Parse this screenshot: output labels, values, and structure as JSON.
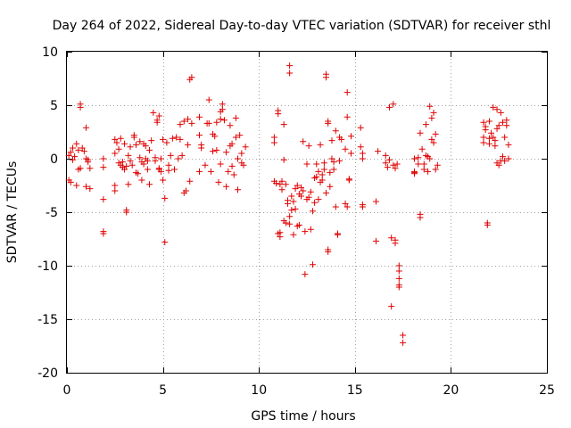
{
  "chart_data": {
    "type": "scatter",
    "title": "Day 264 of 2022, Sidereal Day-to-day VTEC variation (SDTVAR) for receiver sthl",
    "xlabel": "GPS time / hours",
    "ylabel": "SDTVAR / TECUs",
    "xlim": [
      0,
      25
    ],
    "ylim": [
      -20,
      10
    ],
    "xticks": [
      0,
      5,
      10,
      15,
      20,
      25
    ],
    "yticks": [
      -20,
      -15,
      -10,
      -5,
      0,
      5,
      10
    ],
    "grid": true,
    "marker": "+",
    "color": "#e00000",
    "series": [
      {
        "name": "sthl",
        "points": [
          [
            0.1,
            0.3
          ],
          [
            0.1,
            -2.0
          ],
          [
            0.2,
            0.6
          ],
          [
            0.2,
            -2.2
          ],
          [
            0.3,
            1.0
          ],
          [
            0.3,
            -0.1
          ],
          [
            0.4,
            0.2
          ],
          [
            0.5,
            -2.5
          ],
          [
            0.5,
            1.4
          ],
          [
            0.6,
            -1.0
          ],
          [
            0.6,
            0.8
          ],
          [
            0.7,
            5.1
          ],
          [
            0.7,
            4.8
          ],
          [
            0.7,
            -0.9
          ],
          [
            0.8,
            1.0
          ],
          [
            0.9,
            0.7
          ],
          [
            1.0,
            -2.6
          ],
          [
            1.0,
            0.0
          ],
          [
            1.0,
            2.9
          ],
          [
            1.1,
            -0.3
          ],
          [
            1.1,
            -0.1
          ],
          [
            1.2,
            -2.8
          ],
          [
            1.2,
            -0.9
          ],
          [
            1.9,
            0.0
          ],
          [
            1.9,
            -0.8
          ],
          [
            1.9,
            -3.8
          ],
          [
            1.9,
            -6.8
          ],
          [
            1.9,
            -7.0
          ],
          [
            2.5,
            1.8
          ],
          [
            2.5,
            0.5
          ],
          [
            2.5,
            -2.5
          ],
          [
            2.5,
            -3.0
          ],
          [
            2.6,
            1.5
          ],
          [
            2.7,
            0.9
          ],
          [
            2.7,
            -0.4
          ],
          [
            2.8,
            -0.6
          ],
          [
            2.8,
            1.9
          ],
          [
            2.9,
            -0.8
          ],
          [
            2.9,
            -0.3
          ],
          [
            3.0,
            1.4
          ],
          [
            3.0,
            -1.0
          ],
          [
            3.1,
            -0.7
          ],
          [
            3.1,
            -4.8
          ],
          [
            3.1,
            -5.0
          ],
          [
            3.2,
            0.3
          ],
          [
            3.2,
            -2.4
          ],
          [
            3.3,
            1.1
          ],
          [
            3.3,
            -0.2
          ],
          [
            3.4,
            -0.6
          ],
          [
            3.5,
            2.2
          ],
          [
            3.5,
            2.0
          ],
          [
            3.6,
            -1.3
          ],
          [
            3.6,
            1.3
          ],
          [
            3.7,
            -1.4
          ],
          [
            3.8,
            0.1
          ],
          [
            3.8,
            1.6
          ],
          [
            3.9,
            -0.3
          ],
          [
            3.9,
            -2.0
          ],
          [
            4.0,
            1.4
          ],
          [
            4.0,
            -0.5
          ],
          [
            4.1,
            1.2
          ],
          [
            4.1,
            0.0
          ],
          [
            4.2,
            -1.0
          ],
          [
            4.2,
            -0.2
          ],
          [
            4.3,
            0.8
          ],
          [
            4.3,
            -2.4
          ],
          [
            4.4,
            1.7
          ],
          [
            4.5,
            4.3
          ],
          [
            4.6,
            0.1
          ],
          [
            4.6,
            -0.2
          ],
          [
            4.7,
            3.4
          ],
          [
            4.7,
            3.6
          ],
          [
            4.8,
            4.0
          ],
          [
            4.8,
            -0.9
          ],
          [
            4.8,
            -1.0
          ],
          [
            4.9,
            -1.2
          ],
          [
            4.9,
            0.0
          ],
          [
            5.0,
            1.8
          ],
          [
            5.0,
            -2.0
          ],
          [
            5.1,
            -3.7
          ],
          [
            5.1,
            -7.8
          ],
          [
            5.2,
            1.5
          ],
          [
            5.3,
            -0.6
          ],
          [
            5.3,
            -1.1
          ],
          [
            5.4,
            0.3
          ],
          [
            5.5,
            1.9
          ],
          [
            5.6,
            -1.0
          ],
          [
            5.7,
            2.0
          ],
          [
            5.8,
            0.0
          ],
          [
            5.9,
            3.2
          ],
          [
            5.9,
            1.8
          ],
          [
            6.0,
            0.3
          ],
          [
            6.1,
            3.5
          ],
          [
            6.1,
            -3.2
          ],
          [
            6.2,
            -3.0
          ],
          [
            6.3,
            3.7
          ],
          [
            6.3,
            1.3
          ],
          [
            6.4,
            -2.1
          ],
          [
            6.4,
            7.4
          ],
          [
            6.5,
            7.6
          ],
          [
            6.5,
            3.3
          ],
          [
            6.9,
            2.2
          ],
          [
            6.9,
            3.9
          ],
          [
            6.9,
            -1.2
          ],
          [
            7.0,
            1.0
          ],
          [
            7.0,
            1.3
          ],
          [
            7.2,
            -0.6
          ],
          [
            7.3,
            3.3
          ],
          [
            7.4,
            5.5
          ],
          [
            7.4,
            3.3
          ],
          [
            7.5,
            -1.2
          ],
          [
            7.6,
            2.3
          ],
          [
            7.6,
            0.7
          ],
          [
            7.7,
            2.1
          ],
          [
            7.8,
            3.4
          ],
          [
            7.8,
            0.8
          ],
          [
            7.9,
            -2.2
          ],
          [
            8.0,
            3.7
          ],
          [
            8.0,
            4.4
          ],
          [
            8.0,
            -0.5
          ],
          [
            8.1,
            5.1
          ],
          [
            8.1,
            4.6
          ],
          [
            8.2,
            3.6
          ],
          [
            8.3,
            0.6
          ],
          [
            8.3,
            -2.6
          ],
          [
            8.4,
            -1.2
          ],
          [
            8.5,
            1.2
          ],
          [
            8.5,
            3.1
          ],
          [
            8.6,
            1.4
          ],
          [
            8.6,
            -0.7
          ],
          [
            8.7,
            -1.5
          ],
          [
            8.8,
            2.0
          ],
          [
            8.8,
            3.8
          ],
          [
            8.9,
            -2.9
          ],
          [
            8.9,
            0.0
          ],
          [
            9.0,
            2.2
          ],
          [
            9.1,
            0.5
          ],
          [
            9.1,
            -0.4
          ],
          [
            9.2,
            -0.6
          ],
          [
            9.3,
            1.1
          ],
          [
            10.8,
            -2.1
          ],
          [
            10.8,
            2.0
          ],
          [
            10.8,
            1.5
          ],
          [
            10.9,
            -2.3
          ],
          [
            11.0,
            4.5
          ],
          [
            11.0,
            4.2
          ],
          [
            11.0,
            -7.0
          ],
          [
            11.1,
            -6.9
          ],
          [
            11.1,
            -7.3
          ],
          [
            11.1,
            -2.4
          ],
          [
            11.2,
            -2.1
          ],
          [
            11.2,
            -2.9
          ],
          [
            11.3,
            3.2
          ],
          [
            11.3,
            -0.1
          ],
          [
            11.3,
            -5.8
          ],
          [
            11.4,
            -2.4
          ],
          [
            11.4,
            -6.0
          ],
          [
            11.5,
            -3.9
          ],
          [
            11.5,
            -4.2
          ],
          [
            11.6,
            8.7
          ],
          [
            11.6,
            8.0
          ],
          [
            11.6,
            -5.4
          ],
          [
            11.6,
            -6.1
          ],
          [
            11.7,
            -4.8
          ],
          [
            11.7,
            -3.5
          ],
          [
            11.8,
            -4.0
          ],
          [
            11.8,
            -7.1
          ],
          [
            11.9,
            -4.7
          ],
          [
            11.9,
            -2.8
          ],
          [
            12.0,
            -2.5
          ],
          [
            12.0,
            -6.3
          ],
          [
            12.1,
            -3.3
          ],
          [
            12.1,
            -6.2
          ],
          [
            12.2,
            -2.7
          ],
          [
            12.2,
            -3.5
          ],
          [
            12.3,
            1.6
          ],
          [
            12.3,
            -3.0
          ],
          [
            12.4,
            -10.8
          ],
          [
            12.4,
            -6.8
          ],
          [
            12.5,
            -3.8
          ],
          [
            12.5,
            -0.5
          ],
          [
            12.6,
            1.2
          ],
          [
            12.6,
            -3.6
          ],
          [
            12.7,
            -6.6
          ],
          [
            12.7,
            -3.1
          ],
          [
            12.8,
            -9.9
          ],
          [
            12.8,
            -4.9
          ],
          [
            12.9,
            -1.8
          ],
          [
            12.9,
            -4.1
          ],
          [
            13.0,
            -0.5
          ],
          [
            13.0,
            -1.7
          ],
          [
            13.1,
            -3.8
          ],
          [
            13.1,
            -1.2
          ],
          [
            13.2,
            1.3
          ],
          [
            13.2,
            -2.2
          ],
          [
            13.3,
            -1.5
          ],
          [
            13.3,
            -2.0
          ],
          [
            13.4,
            -0.4
          ],
          [
            13.4,
            -1.0
          ],
          [
            13.5,
            7.9
          ],
          [
            13.5,
            7.6
          ],
          [
            13.5,
            -3.2
          ],
          [
            13.6,
            -8.7
          ],
          [
            13.6,
            -8.5
          ],
          [
            13.6,
            3.3
          ],
          [
            13.6,
            3.5
          ],
          [
            13.7,
            -1.3
          ],
          [
            13.7,
            -2.6
          ],
          [
            13.8,
            0.0
          ],
          [
            13.8,
            1.7
          ],
          [
            13.9,
            -0.3
          ],
          [
            13.9,
            -1.0
          ],
          [
            14.0,
            2.6
          ],
          [
            14.0,
            -4.5
          ],
          [
            14.1,
            -7.0
          ],
          [
            14.1,
            -7.1
          ],
          [
            14.2,
            -0.2
          ],
          [
            14.2,
            2.0
          ],
          [
            14.3,
            1.8
          ],
          [
            14.5,
            0.9
          ],
          [
            14.5,
            -4.2
          ],
          [
            14.6,
            6.2
          ],
          [
            14.6,
            -4.5
          ],
          [
            14.6,
            3.9
          ],
          [
            14.7,
            -1.9
          ],
          [
            14.7,
            -2.0
          ],
          [
            14.8,
            0.5
          ],
          [
            14.8,
            2.1
          ],
          [
            15.3,
            2.9
          ],
          [
            15.3,
            1.1
          ],
          [
            15.4,
            0.5
          ],
          [
            15.4,
            0.0
          ],
          [
            15.4,
            -4.5
          ],
          [
            15.4,
            -4.3
          ],
          [
            16.1,
            -7.7
          ],
          [
            16.1,
            -4.0
          ],
          [
            16.2,
            0.7
          ],
          [
            16.6,
            0.3
          ],
          [
            16.6,
            -0.4
          ],
          [
            16.7,
            -0.8
          ],
          [
            16.8,
            -0.1
          ],
          [
            16.8,
            4.8
          ],
          [
            16.9,
            -13.8
          ],
          [
            16.9,
            -7.4
          ],
          [
            17.0,
            5.1
          ],
          [
            17.0,
            -0.6
          ],
          [
            17.1,
            -7.6
          ],
          [
            17.1,
            -7.9
          ],
          [
            17.1,
            -0.9
          ],
          [
            17.2,
            -0.5
          ],
          [
            17.3,
            -10.0
          ],
          [
            17.3,
            -10.5
          ],
          [
            17.3,
            -11.2
          ],
          [
            17.3,
            -11.8
          ],
          [
            17.3,
            -12.0
          ],
          [
            17.5,
            -16.5
          ],
          [
            17.5,
            -17.2
          ],
          [
            18.1,
            0.0
          ],
          [
            18.1,
            -1.2
          ],
          [
            18.1,
            -1.3
          ],
          [
            18.1,
            -1.4
          ],
          [
            18.3,
            0.1
          ],
          [
            18.3,
            -0.5
          ],
          [
            18.4,
            2.4
          ],
          [
            18.4,
            -5.2
          ],
          [
            18.4,
            -5.5
          ],
          [
            18.5,
            0.9
          ],
          [
            18.6,
            -1.0
          ],
          [
            18.6,
            -0.5
          ],
          [
            18.7,
            0.3
          ],
          [
            18.7,
            3.2
          ],
          [
            18.8,
            0.2
          ],
          [
            18.8,
            -1.2
          ],
          [
            18.9,
            4.9
          ],
          [
            18.9,
            0.0
          ],
          [
            19.0,
            1.8
          ],
          [
            19.0,
            3.8
          ],
          [
            19.1,
            1.5
          ],
          [
            19.1,
            4.3
          ],
          [
            19.2,
            2.3
          ],
          [
            19.2,
            -1.0
          ],
          [
            19.3,
            -0.6
          ],
          [
            21.7,
            3.4
          ],
          [
            21.7,
            2.0
          ],
          [
            21.7,
            1.5
          ],
          [
            21.8,
            3.0
          ],
          [
            21.8,
            2.7
          ],
          [
            21.9,
            -6.0
          ],
          [
            21.9,
            -6.2
          ],
          [
            22.0,
            3.5
          ],
          [
            22.0,
            1.9
          ],
          [
            22.0,
            1.4
          ],
          [
            22.1,
            2.4
          ],
          [
            22.2,
            4.8
          ],
          [
            22.2,
            2.0
          ],
          [
            22.3,
            1.7
          ],
          [
            22.3,
            1.2
          ],
          [
            22.4,
            4.6
          ],
          [
            22.4,
            2.8
          ],
          [
            22.4,
            -0.4
          ],
          [
            22.5,
            -0.6
          ],
          [
            22.5,
            3.1
          ],
          [
            22.6,
            4.3
          ],
          [
            22.6,
            -0.2
          ],
          [
            22.7,
            0.2
          ],
          [
            22.7,
            3.4
          ],
          [
            22.8,
            -0.2
          ],
          [
            22.8,
            2.0
          ],
          [
            22.9,
            3.6
          ],
          [
            22.9,
            3.1
          ],
          [
            23.0,
            1.3
          ],
          [
            23.0,
            0.0
          ]
        ]
      }
    ]
  }
}
